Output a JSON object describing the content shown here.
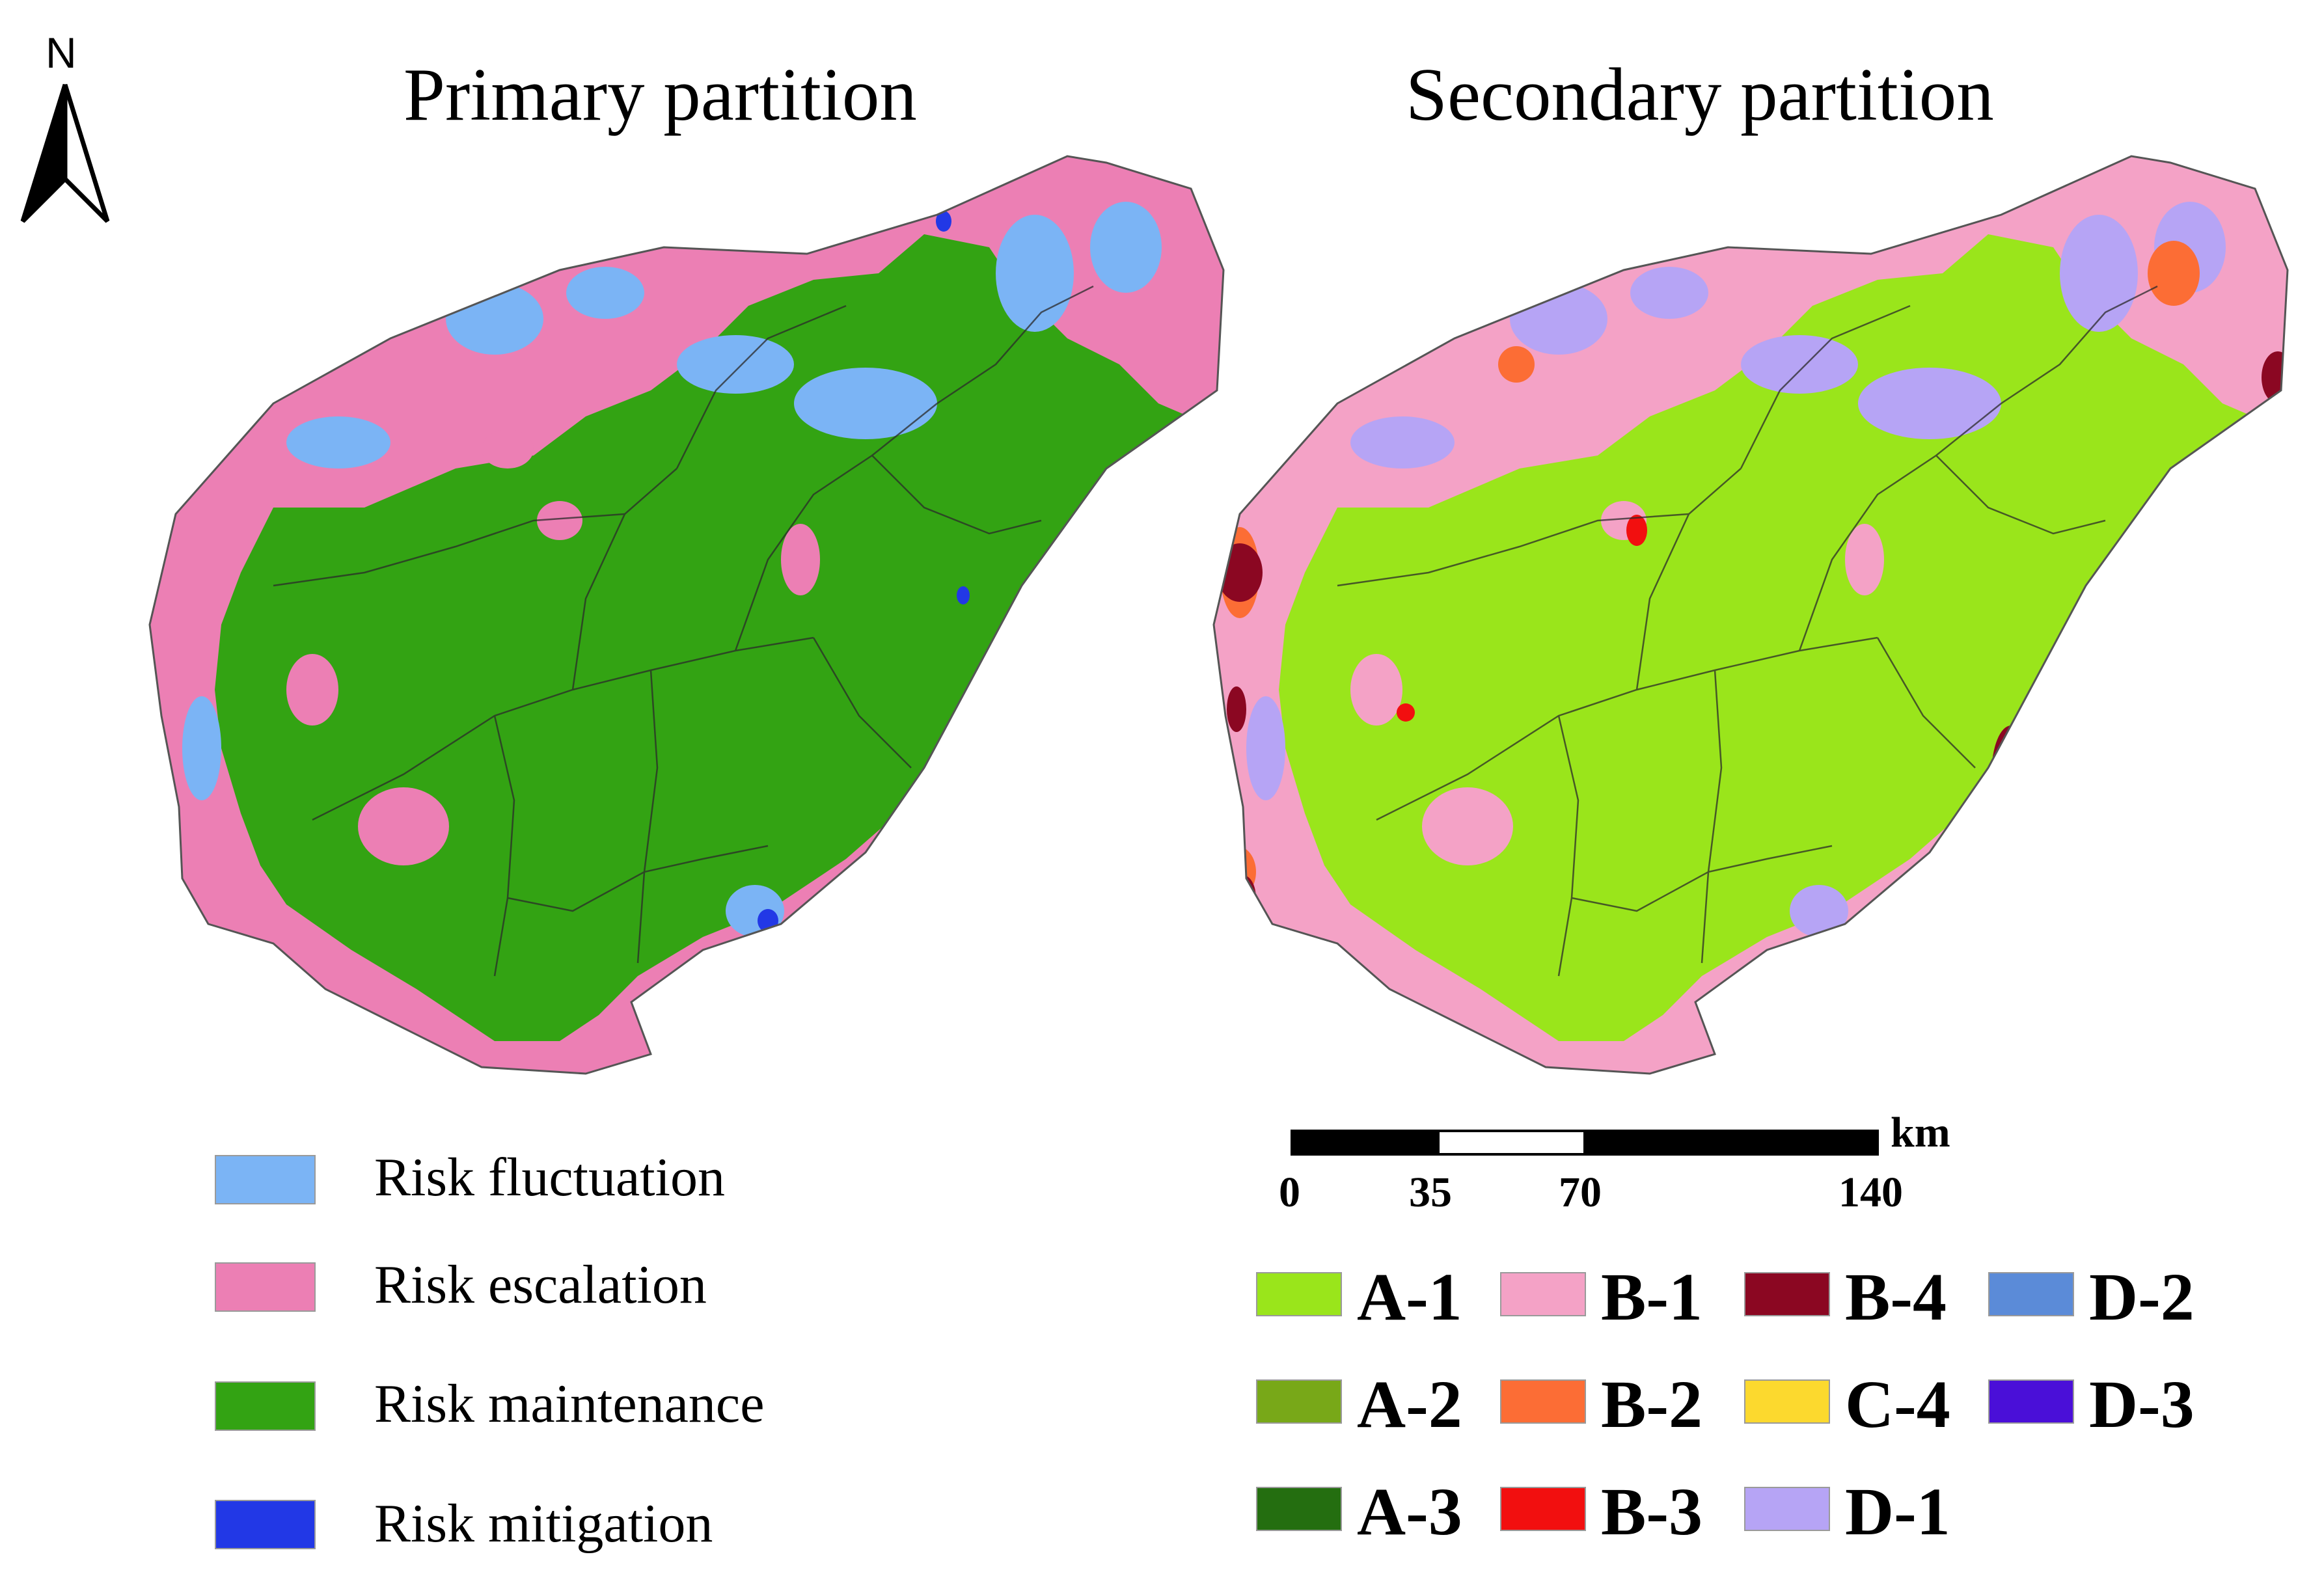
{
  "north_arrow": {
    "label": "N"
  },
  "maps": {
    "primary": {
      "title": "Primary  partition",
      "colors": {
        "fluctuation": "#7bb4f5",
        "escalation": "#ec7fb4",
        "maintenance": "#33a313",
        "mitigation": "#2238e6"
      }
    },
    "secondary": {
      "title": "Secondary  partition",
      "colors": {
        "A1": "#9ae51b",
        "B1": "#f4a2c6",
        "D1": "#b6a4f5",
        "B2": "#fc6d35",
        "B4": "#8b0722",
        "B3": "#f20f0f"
      }
    }
  },
  "primary_legend": [
    {
      "label": "Risk fluctuation",
      "color": "#7bb4f5"
    },
    {
      "label": "Risk escalation",
      "color": "#ec7fb4"
    },
    {
      "label": "Risk maintenance",
      "color": "#33a313"
    },
    {
      "label": "Risk mitigation",
      "color": "#2238e6"
    }
  ],
  "scale_bar": {
    "unit": "km",
    "ticks": [
      "0",
      "35",
      "70",
      "140"
    ]
  },
  "secondary_legend": [
    {
      "label": "A-1",
      "color": "#9ae51b"
    },
    {
      "label": "B-1",
      "color": "#f4a2c6"
    },
    {
      "label": "B-4",
      "color": "#8b0722"
    },
    {
      "label": "D-2",
      "color": "#5b8bd8"
    },
    {
      "label": "A-2",
      "color": "#78a818"
    },
    {
      "label": "B-2",
      "color": "#fc6d35"
    },
    {
      "label": "C-4",
      "color": "#fcd92e"
    },
    {
      "label": "D-3",
      "color": "#4a0fd8"
    },
    {
      "label": "A-3",
      "color": "#246e10"
    },
    {
      "label": "B-3",
      "color": "#f20f0f"
    },
    {
      "label": "D-1",
      "color": "#b6a4f5"
    }
  ]
}
